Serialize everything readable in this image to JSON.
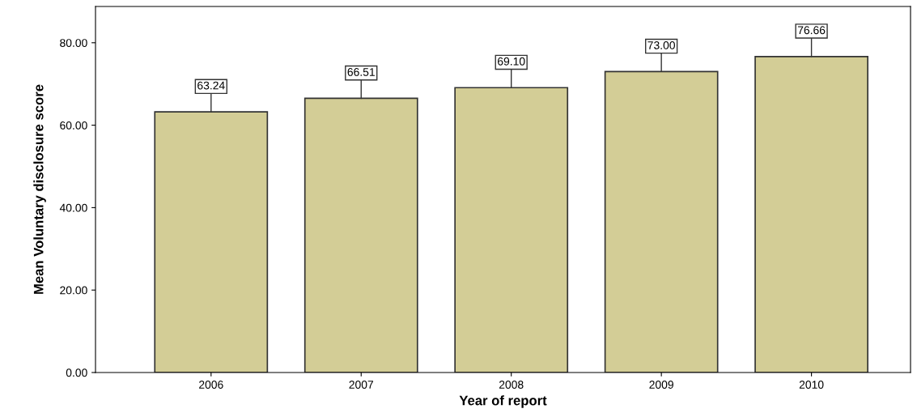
{
  "chart_data": {
    "type": "bar",
    "xlabel": "Year of report",
    "ylabel": "Mean Voluntary disclosure score",
    "categories": [
      "2006",
      "2007",
      "2008",
      "2009",
      "2010"
    ],
    "values": [
      63.24,
      66.51,
      69.1,
      73.0,
      76.66
    ],
    "value_labels": [
      "63.24",
      "66.51",
      "69.10",
      "73.00",
      "76.66"
    ],
    "color": "#d3cd96",
    "ylim": [
      0,
      88.8
    ],
    "yticks": [
      {
        "value": 0,
        "label": "0.00"
      },
      {
        "value": 20,
        "label": "20.00"
      },
      {
        "value": 40,
        "label": "40.00"
      },
      {
        "value": 60,
        "label": "60.00"
      },
      {
        "value": 80,
        "label": "80.00"
      }
    ],
    "grid": false,
    "legend": false
  }
}
